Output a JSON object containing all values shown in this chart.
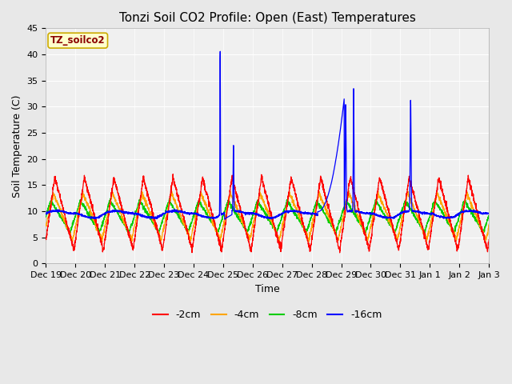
{
  "title": "Tonzi Soil CO2 Profile: Open (East) Temperatures",
  "ylabel": "Soil Temperature (C)",
  "xlabel": "Time",
  "station_label": "TZ_soilco2",
  "ylim": [
    0,
    45
  ],
  "yticks": [
    0,
    5,
    10,
    15,
    20,
    25,
    30,
    35,
    40,
    45
  ],
  "colors": {
    "-2cm": "#ff0000",
    "-4cm": "#ffa500",
    "-8cm": "#00cc00",
    "-16cm": "#0000ff"
  },
  "legend_labels": [
    "-2cm",
    "-4cm",
    "-8cm",
    "-16cm"
  ],
  "fig_bg_color": "#e8e8e8",
  "plot_bg_color": "#f0f0f0",
  "title_fontsize": 11,
  "axis_label_fontsize": 9,
  "tick_fontsize": 8
}
